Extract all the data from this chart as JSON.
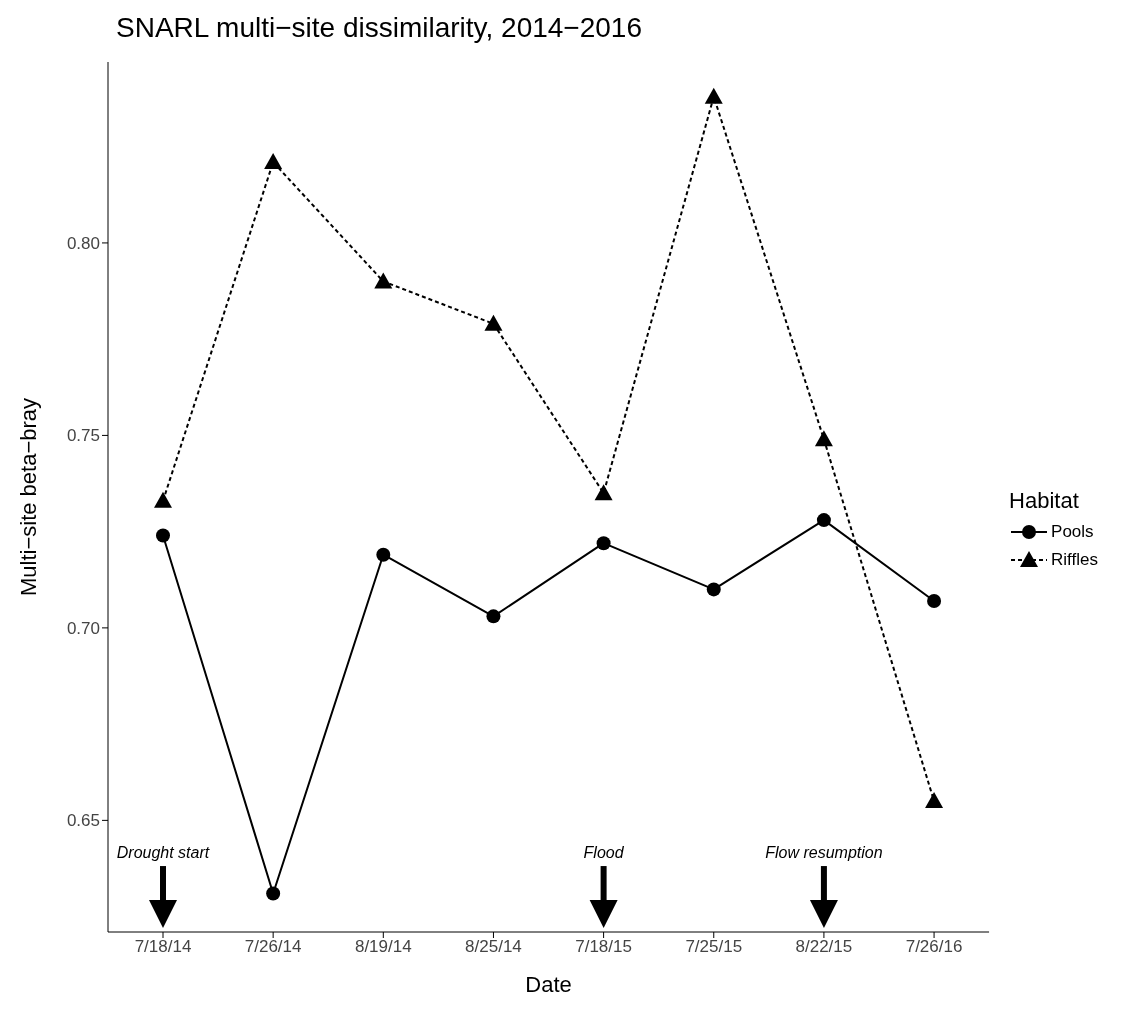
{
  "chart_data": {
    "type": "line",
    "title": "SNARL multi−site dissimilarity, 2014−2016",
    "xlabel": "Date",
    "ylabel": "Multi−site beta−bray",
    "legend_title": "Habitat",
    "legend": "right",
    "grid": false,
    "categories": [
      "7/18/14",
      "7/26/14",
      "8/19/14",
      "8/25/14",
      "7/18/15",
      "7/25/15",
      "8/22/15",
      "7/26/16"
    ],
    "ylim": [
      0.621,
      0.847
    ],
    "yticks": [
      0.65,
      {
        "value": 0.7,
        "label": "0.70"
      },
      0.75,
      {
        "value": 0.8,
        "label": "0.80"
      }
    ],
    "series": [
      {
        "name": "Pools",
        "color": "#000000",
        "marker": "circle",
        "line_style": "solid",
        "values": [
          0.724,
          0.631,
          0.719,
          0.703,
          0.722,
          0.71,
          0.728,
          0.707
        ]
      },
      {
        "name": "Riffles",
        "color": "#000000",
        "marker": "triangle",
        "line_style": "dashed",
        "values": [
          0.733,
          0.821,
          0.79,
          0.779,
          0.735,
          0.838,
          0.749,
          0.655
        ]
      }
    ],
    "annotations": [
      "Drought start",
      "Flood",
      "Flow resumption"
    ]
  }
}
